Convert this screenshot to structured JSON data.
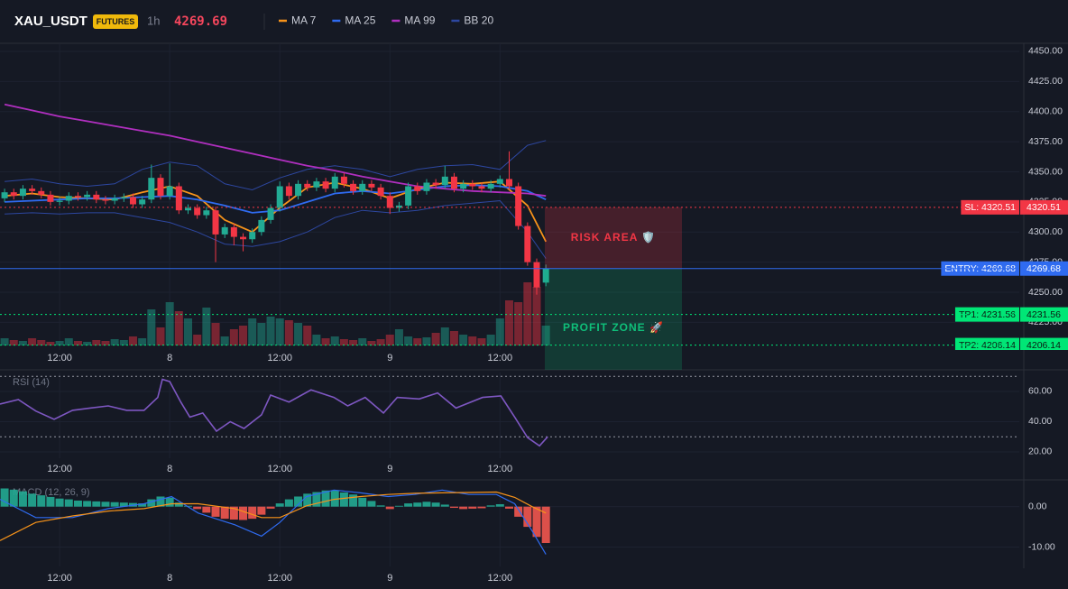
{
  "header": {
    "symbol": "XAU_USDT",
    "badge": "FUTURES",
    "interval": "1h",
    "price": 4269.69
  },
  "chart_data": [
    {
      "type": "candlestick",
      "x": [
        -6,
        -5,
        -4,
        -3,
        -2,
        -1,
        0,
        1,
        2,
        3,
        4,
        5,
        6,
        7,
        8,
        9,
        10,
        11,
        12,
        13,
        14,
        15,
        16,
        17,
        18,
        19,
        20,
        21,
        22,
        23,
        24,
        25,
        26,
        27,
        28,
        29,
        30,
        31,
        32,
        33,
        34,
        35,
        36,
        37,
        38,
        39,
        40,
        41,
        42,
        43,
        44,
        45,
        46,
        47,
        48,
        49,
        50,
        51,
        52,
        53
      ],
      "open": [
        4328,
        4333,
        4330,
        4336,
        4334,
        4331,
        4325,
        4326,
        4330,
        4329,
        4331,
        4327,
        4326,
        4328,
        4329,
        4323,
        4327,
        4345,
        4330,
        4338,
        4318,
        4320,
        4314,
        4318,
        4298,
        4304,
        4296,
        4294,
        4300,
        4310,
        4320,
        4338,
        4330,
        4340,
        4337,
        4342,
        4336,
        4346,
        4340,
        4334,
        4340,
        4337,
        4330,
        4320,
        4322,
        4338,
        4334,
        4341,
        4339,
        4346,
        4336,
        4340,
        4338,
        4336,
        4340,
        4344,
        4338,
        4305,
        4275,
        4258
      ],
      "high": [
        4336,
        4336,
        4339,
        4339,
        4337,
        4334,
        4329,
        4333,
        4333,
        4334,
        4334,
        4330,
        4331,
        4332,
        4332,
        4330,
        4356,
        4348,
        4357,
        4341,
        4323,
        4323,
        4321,
        4321,
        4307,
        4307,
        4299,
        4303,
        4313,
        4323,
        4342,
        4341,
        4343,
        4343,
        4345,
        4345,
        4349,
        4349,
        4343,
        4343,
        4343,
        4340,
        4333,
        4325,
        4341,
        4341,
        4344,
        4344,
        4355,
        4349,
        4343,
        4343,
        4341,
        4343,
        4347,
        4367,
        4341,
        4308,
        4278,
        4273
      ],
      "low": [
        4325,
        4327,
        4327,
        4331,
        4328,
        4322,
        4322,
        4323,
        4326,
        4326,
        4324,
        4323,
        4323,
        4325,
        4320,
        4320,
        4324,
        4327,
        4327,
        4315,
        4315,
        4311,
        4311,
        4275,
        4295,
        4289,
        4284,
        4291,
        4297,
        4307,
        4317,
        4327,
        4327,
        4334,
        4334,
        4333,
        4333,
        4337,
        4331,
        4331,
        4334,
        4327,
        4315,
        4317,
        4319,
        4331,
        4331,
        4336,
        4336,
        4333,
        4333,
        4335,
        4333,
        4333,
        4337,
        4335,
        4302,
        4272,
        4248,
        4255
      ],
      "close": [
        4333,
        4330,
        4336,
        4334,
        4331,
        4325,
        4326,
        4330,
        4329,
        4331,
        4327,
        4326,
        4328,
        4329,
        4323,
        4327,
        4345,
        4330,
        4338,
        4318,
        4320,
        4314,
        4318,
        4298,
        4304,
        4296,
        4294,
        4300,
        4310,
        4320,
        4338,
        4330,
        4340,
        4337,
        4342,
        4336,
        4346,
        4340,
        4334,
        4340,
        4337,
        4330,
        4320,
        4322,
        4338,
        4334,
        4341,
        4339,
        4346,
        4336,
        4340,
        4338,
        4336,
        4340,
        4344,
        4338,
        4305,
        4275,
        4254,
        4269.69
      ],
      "volume": [
        8,
        6,
        5,
        8,
        6,
        4,
        5,
        8,
        5,
        4,
        6,
        5,
        7,
        6,
        10,
        8,
        40,
        20,
        48,
        38,
        30,
        12,
        42,
        25,
        10,
        18,
        22,
        30,
        25,
        32,
        30,
        28,
        25,
        22,
        12,
        8,
        10,
        7,
        6,
        8,
        5,
        7,
        12,
        18,
        10,
        8,
        9,
        14,
        20,
        16,
        12,
        10,
        8,
        12,
        30,
        50,
        48,
        70,
        65,
        22
      ],
      "up_color": "#22ab94",
      "down_color": "#f23645",
      "lines": [
        {
          "name": "MA 7",
          "color": "#f7931a",
          "x": [
            -6,
            -3,
            0,
            3,
            6,
            9,
            12,
            15,
            18,
            21,
            24,
            27,
            30,
            33,
            36,
            39,
            42,
            45,
            48,
            51,
            53
          ],
          "values": [
            4330,
            4332,
            4329,
            4328,
            4327,
            4333,
            4338,
            4330,
            4310,
            4300,
            4320,
            4337,
            4341,
            4336,
            4328,
            4336,
            4341,
            4340,
            4342,
            4322,
            4292
          ]
        },
        {
          "name": "MA 25",
          "color": "#2f6bf0",
          "x": [
            -6,
            -3,
            0,
            3,
            6,
            9,
            12,
            15,
            18,
            21,
            24,
            27,
            30,
            33,
            36,
            39,
            42,
            45,
            48,
            51,
            53
          ],
          "values": [
            4325,
            4326,
            4327,
            4328,
            4328,
            4329,
            4330,
            4327,
            4322,
            4316,
            4318,
            4325,
            4332,
            4334,
            4332,
            4335,
            4338,
            4339,
            4338,
            4334,
            4327
          ]
        },
        {
          "name": "MA 99",
          "color": "#b02fbf",
          "x": [
            -6,
            -3,
            0,
            3,
            6,
            9,
            12,
            15,
            18,
            21,
            24,
            27,
            30,
            33,
            36,
            39,
            42,
            45,
            48,
            51,
            53
          ],
          "values": [
            4406,
            4401,
            4396,
            4392,
            4388,
            4384,
            4380,
            4375,
            4370,
            4365,
            4360,
            4355,
            4351,
            4346,
            4342,
            4338,
            4336,
            4334,
            4333,
            4332,
            4330
          ]
        }
      ],
      "bb": {
        "name": "BB 20",
        "color": "#2d47a0",
        "x": [
          -6,
          -3,
          0,
          3,
          6,
          9,
          12,
          15,
          18,
          21,
          24,
          27,
          30,
          33,
          36,
          39,
          42,
          45,
          48,
          51,
          53
        ],
        "upper": [
          4342,
          4344,
          4340,
          4338,
          4340,
          4352,
          4358,
          4355,
          4340,
          4335,
          4345,
          4352,
          4355,
          4352,
          4346,
          4352,
          4355,
          4356,
          4352,
          4372,
          4376
        ],
        "lower": [
          4315,
          4316,
          4315,
          4316,
          4316,
          4312,
          4308,
          4300,
          4290,
          4288,
          4292,
          4300,
          4312,
          4318,
          4316,
          4318,
          4322,
          4324,
          4326,
          4300,
          4278
        ]
      },
      "xlim": [
        -6.5,
        104.6
      ],
      "xticks": [
        {
          "value": 0,
          "label": "12:00"
        },
        {
          "value": 12,
          "label": "8"
        },
        {
          "value": 24,
          "label": "12:00"
        },
        {
          "value": 36,
          "label": "9"
        },
        {
          "value": 48,
          "label": "12:00"
        }
      ],
      "ylim": [
        4185.6,
        4456.7
      ],
      "yticks": [
        {
          "value": 4450,
          "label": "4450.00"
        },
        {
          "value": 4425,
          "label": "4425.00"
        },
        {
          "value": 4400,
          "label": "4400.00"
        },
        {
          "value": 4375,
          "label": "4375.00"
        },
        {
          "value": 4350,
          "label": "4350.00"
        },
        {
          "value": 4325,
          "label": "4325.00"
        },
        {
          "value": 4300,
          "label": "4300.00"
        },
        {
          "value": 4275,
          "label": "4275.00"
        },
        {
          "value": 4250,
          "label": "4250.00"
        },
        {
          "value": 4225,
          "label": "4225.00"
        }
      ],
      "levels": [
        {
          "label": "SL: 4320.51",
          "value": 4320.51,
          "color": "#f23645",
          "style": "dotted"
        },
        {
          "label": "ENTRY: 4269.68",
          "value": 4269.68,
          "color": "#2f6bf0",
          "style": "solid"
        },
        {
          "label": "TP1: 4231.56",
          "value": 4231.56,
          "color": "#00e676",
          "style": "dotted"
        },
        {
          "label": "TP2: 4206.14",
          "value": 4206.14,
          "color": "#00e676",
          "style": "dotted"
        }
      ],
      "zones": [
        {
          "label": "RISK AREA 🛡️",
          "color": "#f23645"
        },
        {
          "label": "PROFIT ZONE 🚀",
          "color": "#0fbf7a"
        }
      ]
    },
    {
      "type": "line",
      "title": "RSI (14)",
      "color": "#7e57c2",
      "x": [
        -6.5,
        -4.5,
        -2.6,
        -0.6,
        1.4,
        3.3,
        5.3,
        7.3,
        9.2,
        10.7,
        11.2,
        12,
        13.2,
        14.2,
        15.6,
        17.1,
        18.6,
        20.1,
        22,
        23,
        25,
        27.4,
        29.9,
        31.4,
        33.3,
        35.3,
        36.8,
        39.2,
        41.2,
        43.2,
        46.1,
        48.1,
        49.6,
        51,
        52.3,
        53.2
      ],
      "values": [
        51.6,
        54.6,
        47,
        41.5,
        47.5,
        49,
        50.4,
        47.5,
        47.5,
        56,
        68,
        66.5,
        53,
        43,
        45.7,
        33.7,
        40,
        35.5,
        44.5,
        57.6,
        53,
        61,
        56,
        50.4,
        56,
        45.7,
        56,
        55,
        59,
        49,
        56,
        57,
        43,
        29.5,
        24,
        30
      ],
      "bands": [
        70,
        30
      ],
      "xlim": [
        -6.5,
        104.6
      ],
      "xticks": [
        {
          "value": 0,
          "label": "12:00"
        },
        {
          "value": 12,
          "label": "8"
        },
        {
          "value": 24,
          "label": "12:00"
        },
        {
          "value": 36,
          "label": "9"
        },
        {
          "value": 48,
          "label": "12:00"
        }
      ],
      "ylim": [
        15.8,
        72.5
      ],
      "yticks": [
        {
          "value": 60,
          "label": "60.00"
        },
        {
          "value": 40,
          "label": "40.00"
        },
        {
          "value": 20,
          "label": "20.00"
        }
      ]
    },
    {
      "type": "macd",
      "title": "MACD (12, 26, 9)",
      "histogram": {
        "x": [
          -6,
          -5,
          -4,
          -3,
          -2,
          -1,
          0,
          1,
          2,
          3,
          4,
          5,
          6,
          7,
          8,
          9,
          10,
          11,
          12,
          13,
          14,
          15,
          16,
          17,
          18,
          19,
          20,
          21,
          22,
          23,
          24,
          25,
          26,
          27,
          28,
          29,
          30,
          31,
          32,
          33,
          34,
          35,
          36,
          37,
          38,
          39,
          40,
          41,
          42,
          43,
          44,
          45,
          46,
          47,
          48,
          49,
          50,
          51,
          52,
          53
        ],
        "values": [
          4.5,
          4.2,
          3.8,
          3.2,
          2.8,
          2.4,
          2.0,
          1.8,
          1.5,
          1.4,
          1.3,
          1.2,
          1.1,
          1.0,
          0.9,
          0.8,
          1.8,
          2.5,
          2.2,
          1.0,
          0.2,
          -0.6,
          -1.5,
          -2.5,
          -3.0,
          -3.2,
          -3.3,
          -3.0,
          -2.0,
          -0.5,
          0.8,
          1.8,
          2.5,
          3.2,
          3.6,
          4.0,
          4.0,
          3.5,
          3.0,
          2.2,
          1.4,
          0.3,
          -0.6,
          0.2,
          0.8,
          1.0,
          1.2,
          1.0,
          0.5,
          -0.3,
          -0.6,
          -0.5,
          -0.4,
          0.3,
          0.6,
          -0.5,
          -2.5,
          -5.0,
          -7.5,
          -9.0
        ],
        "up_color": "#22ab94",
        "down_color": "#f2574f"
      },
      "lines": [
        {
          "color": "#2f6bf0",
          "x": [
            -6.5,
            -2.6,
            1.4,
            5.3,
            9.2,
            12.2,
            15.1,
            19.1,
            22,
            24,
            26.9,
            29.9,
            32.8,
            35.8,
            38.7,
            41.7,
            44.6,
            47.6,
            49.6,
            51.5,
            53
          ],
          "values": [
            1.8,
            -2.7,
            -2.7,
            -0.5,
            0.7,
            2.5,
            -1.6,
            -4.5,
            -7.3,
            -3.9,
            2.5,
            4.1,
            3.4,
            2.5,
            3,
            4.1,
            3,
            3,
            0.7,
            -6,
            -11.8
          ]
        },
        {
          "color": "#f7931a",
          "x": [
            -6.5,
            -2.6,
            1.4,
            5.3,
            9.2,
            12.2,
            15.1,
            19.1,
            22,
            24,
            26.9,
            29.9,
            32.8,
            35.8,
            38.7,
            41.7,
            44.6,
            47.6,
            49.6,
            51.5,
            53
          ],
          "values": [
            -8.4,
            -3.9,
            -2.3,
            -1.1,
            -0.5,
            0.7,
            0.7,
            -0.5,
            -2.7,
            -2.7,
            0.2,
            1.8,
            2.5,
            3,
            3.3,
            3.4,
            3.5,
            3.6,
            2.3,
            0,
            -1.6
          ]
        }
      ],
      "xlim": [
        -6.5,
        104.6
      ],
      "xticks": [
        {
          "value": 0,
          "label": "12:00"
        },
        {
          "value": 12,
          "label": "8"
        },
        {
          "value": 24,
          "label": "12:00"
        },
        {
          "value": 36,
          "label": "9"
        },
        {
          "value": 48,
          "label": "12:00"
        }
      ],
      "ylim": [
        -14.8,
        6.4
      ],
      "yticks": [
        {
          "value": 0,
          "label": "0.00"
        },
        {
          "value": -10,
          "label": "-10.00"
        }
      ]
    }
  ]
}
